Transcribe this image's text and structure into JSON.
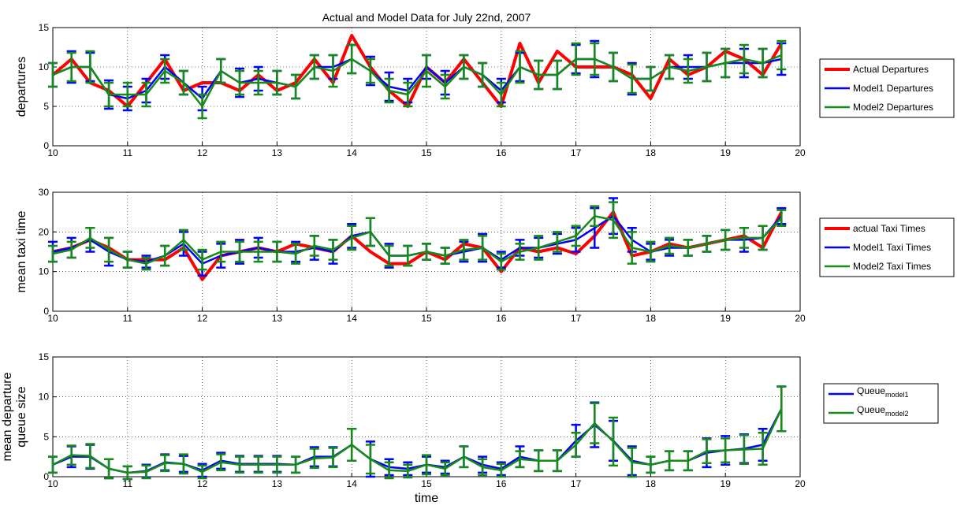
{
  "chart_data": [
    {
      "type": "line",
      "title": "Actual and Model Data for July 22nd, 2007",
      "ylabel": [
        "departures"
      ],
      "x": [
        10,
        10.25,
        10.5,
        10.75,
        11,
        11.25,
        11.5,
        11.75,
        12,
        12.25,
        12.5,
        12.75,
        13,
        13.25,
        13.5,
        13.75,
        14,
        14.25,
        14.5,
        14.75,
        15,
        15.25,
        15.5,
        15.75,
        16,
        16.25,
        16.5,
        16.75,
        17,
        17.25,
        17.5,
        17.75,
        18,
        18.25,
        18.5,
        18.75,
        19,
        19.25,
        19.5,
        19.75
      ],
      "xlim": [
        10,
        20
      ],
      "xticks": [
        10,
        11,
        12,
        13,
        14,
        15,
        16,
        17,
        18,
        19,
        20
      ],
      "ylim": [
        0,
        15
      ],
      "yticks": [
        0,
        5,
        10,
        15
      ],
      "grid": true,
      "series": [
        {
          "name": "Actual Departures",
          "color": "#ff0000",
          "values": [
            9,
            11,
            8,
            7,
            5,
            8,
            11,
            7,
            8,
            8,
            7,
            9,
            7,
            8,
            11,
            8,
            14,
            10,
            7,
            5,
            10,
            8,
            11,
            8,
            5,
            13,
            8,
            12,
            10,
            10,
            10,
            9,
            6,
            11,
            9,
            10,
            12,
            11,
            9,
            13
          ]
        },
        {
          "name": "Model1 Departures",
          "color": "#0000ff",
          "values": [
            9,
            10,
            10,
            6.5,
            6,
            7,
            10,
            8,
            6,
            9.5,
            8,
            8.5,
            8,
            7.5,
            10,
            10,
            11,
            9.5,
            7.5,
            7,
            10,
            8,
            10,
            9,
            7,
            10,
            9,
            9,
            11,
            11,
            10,
            8.5,
            8.5,
            10,
            10,
            10,
            10.5,
            10.5,
            10.5,
            11
          ],
          "errors": [
            1.5,
            2,
            1.8,
            1.8,
            1.5,
            1.5,
            1.5,
            1.5,
            1.5,
            1.5,
            1.8,
            1.5,
            1.5,
            1.5,
            1.5,
            1.5,
            1.8,
            1.8,
            1.8,
            1.5,
            1.5,
            1.5,
            1.5,
            1.5,
            1.5,
            1.8,
            1.8,
            1.8,
            1.8,
            2.3,
            1.8,
            2,
            1.5,
            1.5,
            1.5,
            1.8,
            1.8,
            1.8,
            1.8,
            2
          ]
        },
        {
          "name": "Model2 Departures",
          "color": "#168c16",
          "values": [
            9,
            10,
            10,
            6.5,
            6.5,
            6.5,
            9.5,
            8,
            5,
            9.5,
            8,
            8,
            8,
            7.5,
            10,
            9.5,
            11,
            9.5,
            7,
            6.5,
            9.5,
            7.5,
            10,
            9,
            6.5,
            10,
            9,
            9,
            11,
            11,
            10,
            8.5,
            8.5,
            10,
            9.5,
            10,
            10.5,
            11,
            10.5,
            11.5
          ],
          "errors": [
            1.5,
            1.8,
            2,
            1.5,
            1.5,
            1.5,
            1.5,
            1.5,
            1.5,
            1.5,
            1.5,
            1.5,
            1.5,
            1.5,
            1.5,
            2,
            1.8,
            1.5,
            1.5,
            1.5,
            2,
            1.5,
            1.5,
            1.5,
            1.5,
            2,
            1.8,
            1.8,
            2,
            2,
            1.8,
            1.8,
            1.5,
            1.5,
            1.5,
            1.8,
            1.8,
            1.8,
            1.8,
            1.8
          ]
        }
      ]
    },
    {
      "type": "line",
      "ylabel": [
        "mean taxi time"
      ],
      "x": [
        10,
        10.25,
        10.5,
        10.75,
        11,
        11.25,
        11.5,
        11.75,
        12,
        12.25,
        12.5,
        12.75,
        13,
        13.25,
        13.5,
        13.75,
        14,
        14.25,
        14.5,
        14.75,
        15,
        15.25,
        15.5,
        15.75,
        16,
        16.25,
        16.5,
        16.75,
        17,
        17.25,
        17.5,
        17.75,
        18,
        18.25,
        18.5,
        18.75,
        19,
        19.25,
        19.5,
        19.75
      ],
      "xlim": [
        10,
        20
      ],
      "xticks": [
        10,
        11,
        12,
        13,
        14,
        15,
        16,
        17,
        18,
        19,
        20
      ],
      "ylim": [
        0,
        30
      ],
      "yticks": [
        0,
        10,
        20,
        30
      ],
      "grid": true,
      "series": [
        {
          "name": "actual Taxi Times",
          "color": "#ff0000",
          "values": [
            15,
            16,
            18,
            16,
            13,
            13,
            13,
            16,
            8,
            14,
            15,
            16,
            15,
            17,
            16,
            15,
            19,
            15,
            12,
            12,
            15,
            13,
            17,
            16,
            10,
            16,
            15,
            16,
            14.5,
            19,
            25,
            14,
            15,
            17,
            16,
            17,
            18,
            19,
            16,
            25
          ]
        },
        {
          "name": "Model1 Taxi Times",
          "color": "#0000ff",
          "values": [
            15,
            16,
            18,
            15,
            13,
            12.5,
            14,
            17,
            12,
            14,
            15,
            16,
            15,
            15,
            16,
            15,
            19,
            20,
            14,
            14,
            15,
            14,
            15,
            16,
            13,
            16,
            16,
            17,
            18,
            21,
            24,
            18,
            15,
            16,
            16,
            17,
            18,
            18,
            18.5,
            24
          ],
          "errors": [
            2.5,
            2.5,
            3,
            3.5,
            2,
            1.5,
            2.5,
            3,
            3,
            3,
            3,
            2.5,
            2.5,
            2.5,
            3,
            3,
            3,
            3.5,
            3,
            2.5,
            2,
            2,
            2.5,
            3.5,
            2,
            2,
            2.5,
            2.5,
            3,
            5,
            4.5,
            3,
            2,
            2,
            2,
            2,
            2.5,
            3,
            3,
            2
          ]
        },
        {
          "name": "Model2 Taxi Times",
          "color": "#168c16",
          "values": [
            14.5,
            15.5,
            18.5,
            15.5,
            13,
            12,
            14,
            18,
            13,
            15,
            15,
            15,
            15,
            14.5,
            16.5,
            15.5,
            18.5,
            20,
            14,
            14,
            15,
            14,
            15.5,
            16,
            12.5,
            15,
            16,
            17.5,
            19,
            24,
            23,
            16,
            15,
            16.5,
            16,
            17,
            18,
            18.5,
            18.5,
            23.5
          ],
          "errors": [
            2,
            2,
            2.5,
            3,
            2,
            1.5,
            2.5,
            2.5,
            2.5,
            2.5,
            2.5,
            2.5,
            2.5,
            2.5,
            2.5,
            2.5,
            3,
            3.5,
            2.5,
            2.5,
            2,
            2,
            2.5,
            3,
            2,
            2,
            3,
            2.5,
            2.5,
            2.5,
            4.5,
            4,
            2.5,
            2,
            2,
            2,
            2.5,
            2.5,
            3,
            2
          ]
        }
      ]
    },
    {
      "type": "line",
      "ylabel": [
        "mean departure",
        "queue size"
      ],
      "xlabel": "time",
      "x": [
        10,
        10.25,
        10.5,
        10.75,
        11,
        11.25,
        11.5,
        11.75,
        12,
        12.25,
        12.5,
        12.75,
        13,
        13.25,
        13.5,
        13.75,
        14,
        14.25,
        14.5,
        14.75,
        15,
        15.25,
        15.5,
        15.75,
        16,
        16.25,
        16.5,
        16.75,
        17,
        17.25,
        17.5,
        17.75,
        18,
        18.25,
        18.5,
        18.75,
        19,
        19.25,
        19.5,
        19.75
      ],
      "xlim": [
        10,
        20
      ],
      "xticks": [
        10,
        11,
        12,
        13,
        14,
        15,
        16,
        17,
        18,
        19,
        20
      ],
      "ylim": [
        0,
        15
      ],
      "yticks": [
        0,
        5,
        10,
        15
      ],
      "grid": true,
      "series": [
        {
          "name": "Queue",
          "name_sub": "model1",
          "color": "#0000ff",
          "values": [
            1.5,
            2.5,
            2.5,
            1,
            0.5,
            0.7,
            1.8,
            1.6,
            0.8,
            2,
            1.6,
            1.6,
            1.6,
            1.5,
            2.5,
            2.5,
            4,
            2.2,
            1.2,
            1,
            1.5,
            1.2,
            2.5,
            1.5,
            1,
            2.5,
            2,
            2,
            4.5,
            6.5,
            4.5,
            2,
            1.5,
            2,
            2,
            3,
            3.3,
            3.5,
            4,
            8.5
          ],
          "errors": [
            1,
            1.3,
            1.5,
            1.2,
            0.8,
            0.8,
            1,
            1,
            0.8,
            1,
            1,
            1,
            1,
            1,
            1.2,
            1.2,
            2,
            2.2,
            1,
            0.8,
            1,
            0.8,
            1.3,
            1,
            0.8,
            1.3,
            1.3,
            1.3,
            2,
            2.8,
            2.5,
            1.8,
            1,
            1.2,
            1.2,
            1.8,
            1.8,
            1.8,
            2,
            2.8
          ]
        },
        {
          "name": "Queue",
          "name_sub": "model2",
          "color": "#168c16",
          "values": [
            1.5,
            2.7,
            2.6,
            1,
            0.5,
            0.6,
            1.7,
            1.6,
            0.6,
            1.8,
            1.5,
            1.5,
            1.5,
            1.5,
            2.3,
            2.4,
            4,
            2.2,
            0.8,
            0.7,
            1.5,
            1,
            2.5,
            1.2,
            0.8,
            2.2,
            2,
            2,
            4,
            6.7,
            4.4,
            1.8,
            1.5,
            2,
            2,
            3.2,
            3.3,
            3.4,
            3.5,
            8.5
          ],
          "errors": [
            1,
            1.2,
            1.5,
            1.2,
            0.8,
            0.8,
            1,
            1.2,
            0.8,
            1,
            1,
            1,
            1,
            1,
            1.2,
            1.2,
            2,
            1.8,
            1,
            0.8,
            1.2,
            0.8,
            1.3,
            1,
            0.8,
            1,
            1.3,
            1.3,
            1.5,
            2.5,
            3,
            1.8,
            1,
            1.2,
            1.2,
            1.5,
            1.5,
            1.8,
            2,
            2.8
          ]
        }
      ]
    }
  ]
}
